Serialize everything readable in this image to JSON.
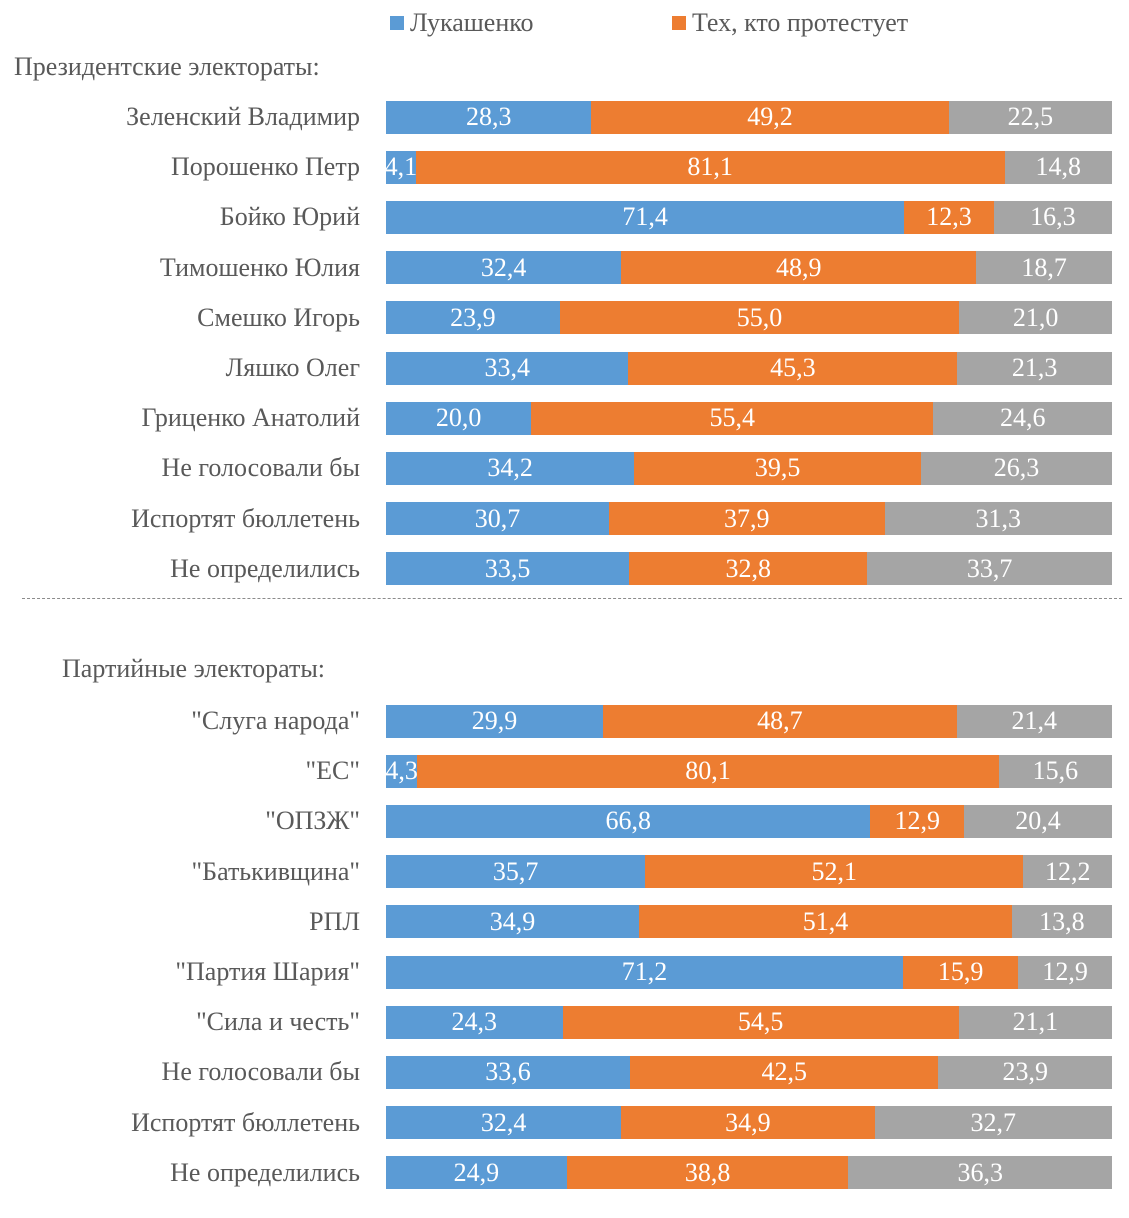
{
  "chart_data": {
    "type": "bar",
    "orientation": "horizontal",
    "stacked": true,
    "percent": true,
    "xlim": [
      0,
      100
    ],
    "grid": false,
    "legend_position": "top",
    "legend": [
      {
        "name": "Лукашенко",
        "color": "#5B9BD5"
      },
      {
        "name": "Тех, кто протестует",
        "color": "#ED7D31"
      }
    ],
    "series": [
      {
        "key": "lukashenko",
        "name": "Лукашенко",
        "color": "#5B9BD5"
      },
      {
        "key": "protesters",
        "name": "Тех, кто протестует",
        "color": "#ED7D31"
      },
      {
        "key": "other",
        "name": "",
        "color": "#A5A5A5"
      }
    ],
    "groups": [
      {
        "title": "Президентские электораты:",
        "categories": [
          "Зеленский Владимир",
          "Порошенко Петр",
          "Бойко Юрий",
          "Тимошенко Юлия",
          "Смешко Игорь",
          "Ляшко Олег",
          "Гриценко Анатолий",
          "Не голосовали бы",
          "Испортят бюллетень",
          "Не определились"
        ],
        "values": [
          [
            28.3,
            49.2,
            22.5
          ],
          [
            4.1,
            81.1,
            14.8
          ],
          [
            71.4,
            12.3,
            16.3
          ],
          [
            32.4,
            48.9,
            18.7
          ],
          [
            23.9,
            55.0,
            21.0
          ],
          [
            33.4,
            45.3,
            21.3
          ],
          [
            20.0,
            55.4,
            24.6
          ],
          [
            34.2,
            39.5,
            26.3
          ],
          [
            30.7,
            37.9,
            31.3
          ],
          [
            33.5,
            32.8,
            33.7
          ]
        ],
        "labels": [
          [
            "28,3",
            "49,2",
            "22,5"
          ],
          [
            "4,1",
            "81,1",
            "14,8"
          ],
          [
            "71,4",
            "12,3",
            "16,3"
          ],
          [
            "32,4",
            "48,9",
            "18,7"
          ],
          [
            "23,9",
            "55,0",
            "21,0"
          ],
          [
            "33,4",
            "45,3",
            "21,3"
          ],
          [
            "20,0",
            "55,4",
            "24,6"
          ],
          [
            "34,2",
            "39,5",
            "26,3"
          ],
          [
            "30,7",
            "37,9",
            "31,3"
          ],
          [
            "33,5",
            "32,8",
            "33,7"
          ]
        ]
      },
      {
        "title": "Партийные электораты:",
        "categories": [
          "\"Слуга народа\"",
          "\"ЕС\"",
          "\"ОПЗЖ\"",
          "\"Батькивщина\"",
          "РПЛ",
          "\"Партия Шария\"",
          "\"Сила и честь\"",
          "Не голосовали бы",
          "Испортят бюллетень",
          "Не определились"
        ],
        "values": [
          [
            29.9,
            48.7,
            21.4
          ],
          [
            4.3,
            80.1,
            15.6
          ],
          [
            66.8,
            12.9,
            20.4
          ],
          [
            35.7,
            52.1,
            12.2
          ],
          [
            34.9,
            51.4,
            13.8
          ],
          [
            71.2,
            15.9,
            12.9
          ],
          [
            24.3,
            54.5,
            21.1
          ],
          [
            33.6,
            42.5,
            23.9
          ],
          [
            32.4,
            34.9,
            32.7
          ],
          [
            24.9,
            38.8,
            36.3
          ]
        ],
        "labels": [
          [
            "29,9",
            "48,7",
            "21,4"
          ],
          [
            "4,3",
            "80,1",
            "15,6"
          ],
          [
            "66,8",
            "12,9",
            "20,4"
          ],
          [
            "35,7",
            "52,1",
            "12,2"
          ],
          [
            "34,9",
            "51,4",
            "13,8"
          ],
          [
            "71,2",
            "15,9",
            "12,9"
          ],
          [
            "24,3",
            "54,5",
            "21,1"
          ],
          [
            "33,6",
            "42,5",
            "23,9"
          ],
          [
            "32,4",
            "34,9",
            "32,7"
          ],
          [
            "24,9",
            "38,8",
            "36,3"
          ]
        ]
      }
    ]
  }
}
